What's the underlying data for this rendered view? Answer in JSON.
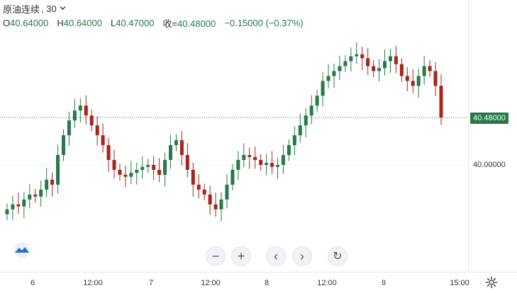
{
  "legend": {
    "symbol": "原油连续",
    "interval": ", 30",
    "open_label": "O",
    "open": "40.64000",
    "high_label": "H",
    "high": "40.64000",
    "low_label": "L",
    "low": "40.47000",
    "close_label": "收=",
    "close": "40.48000",
    "change": "−0.15000",
    "change_pct": "(−0.37%)"
  },
  "price_axis": {
    "current_price": "40.48000",
    "tick_label": "40.00000"
  },
  "time_axis": {
    "labels": [
      "6",
      "12:00",
      "7",
      "12:00",
      "8",
      "12:00",
      "9",
      "15:00"
    ]
  },
  "toolbar": {
    "zoom_out": "−",
    "zoom_in": "+",
    "scroll_left": "‹",
    "scroll_right": "›",
    "reset": "↻"
  },
  "colors": {
    "up": "#26794a",
    "down": "#a8231d",
    "accent": "#26794a"
  },
  "icons": [
    "chevron-down-icon",
    "tradingview-logo-icon",
    "gear-icon",
    "reset-icon"
  ],
  "chart_data": {
    "type": "candlestick",
    "symbol": "原油连续",
    "interval": "30",
    "y_ticks": [
      40.0
    ],
    "current": 40.48,
    "x_ticks": [
      "6",
      "12:00",
      "7",
      "12:00",
      "8",
      "12:00",
      "9",
      "15:00"
    ],
    "close_series": [
      39.55,
      39.6,
      39.58,
      39.65,
      39.7,
      39.68,
      39.75,
      39.85,
      39.8,
      40.1,
      40.3,
      40.45,
      40.55,
      40.6,
      40.5,
      40.4,
      40.3,
      40.2,
      40.05,
      39.95,
      39.9,
      39.88,
      39.92,
      39.95,
      39.98,
      40.0,
      39.95,
      39.9,
      40.05,
      40.2,
      40.25,
      40.1,
      39.95,
      39.8,
      39.75,
      39.7,
      39.6,
      39.55,
      39.65,
      39.8,
      39.95,
      40.05,
      40.1,
      40.08,
      40.05,
      40.0,
      40.02,
      39.98,
      40.0,
      40.1,
      40.2,
      40.3,
      40.4,
      40.5,
      40.6,
      40.7,
      40.85,
      40.9,
      40.95,
      41.0,
      41.05,
      41.1,
      41.12,
      41.08,
      41.0,
      40.95,
      40.98,
      41.05,
      41.1,
      41.02,
      40.9,
      40.85,
      40.8,
      40.9,
      41.0,
      40.95,
      40.8,
      40.48
    ]
  }
}
